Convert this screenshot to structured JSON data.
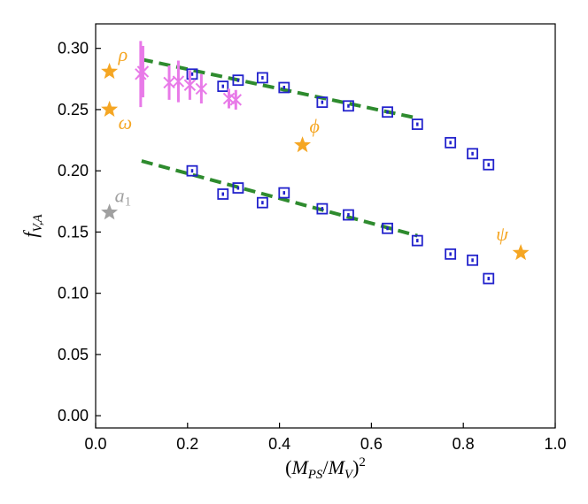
{
  "chart_data": {
    "type": "scatter",
    "xlabel": "(M_PS/M_V)^2",
    "ylabel": "f_V,A",
    "xlim": [
      0.0,
      1.0
    ],
    "ylim": [
      -0.01,
      0.32
    ],
    "xticks": [
      "0.0",
      "0.2",
      "0.4",
      "0.6",
      "0.8",
      "1.0"
    ],
    "yticks": [
      "0.00",
      "0.05",
      "0.10",
      "0.15",
      "0.20",
      "0.25",
      "0.30"
    ],
    "grid": false,
    "legend": "none",
    "colors": {
      "lattice": "#2222cc",
      "magenta": "#e87ae8",
      "fit": "#2e8b2e",
      "experiment": "#f5a623",
      "a1": "#a0a0a0"
    },
    "series": [
      {
        "marker": "open-square-blue",
        "points": [
          [
            0.21,
            0.279
          ],
          [
            0.277,
            0.269
          ],
          [
            0.31,
            0.274
          ],
          [
            0.363,
            0.276
          ],
          [
            0.41,
            0.268
          ],
          [
            0.493,
            0.256
          ],
          [
            0.55,
            0.253
          ],
          [
            0.635,
            0.248
          ],
          [
            0.7,
            0.238
          ],
          [
            0.772,
            0.223
          ],
          [
            0.82,
            0.214
          ],
          [
            0.855,
            0.205
          ]
        ]
      },
      {
        "marker": "open-square-blue",
        "points": [
          [
            0.21,
            0.2
          ],
          [
            0.277,
            0.181
          ],
          [
            0.31,
            0.186
          ],
          [
            0.363,
            0.174
          ],
          [
            0.41,
            0.182
          ],
          [
            0.493,
            0.169
          ],
          [
            0.55,
            0.164
          ],
          [
            0.635,
            0.153
          ],
          [
            0.7,
            0.143
          ],
          [
            0.772,
            0.132
          ],
          [
            0.82,
            0.127
          ],
          [
            0.855,
            0.112
          ]
        ]
      },
      {
        "marker": "x-magenta-errorbar",
        "points": [
          [
            0.098,
            0.279,
            0.027
          ],
          [
            0.103,
            0.281,
            0.021
          ],
          [
            0.16,
            0.272,
            0.014
          ],
          [
            0.18,
            0.273,
            0.017
          ],
          [
            0.205,
            0.27,
            0.012
          ],
          [
            0.23,
            0.267,
            0.012
          ],
          [
            0.29,
            0.259,
            0.008
          ],
          [
            0.305,
            0.258,
            0.008
          ]
        ]
      },
      {
        "marker": "dashed-line-green",
        "points": [
          [
            0.1,
            0.291
          ],
          [
            0.7,
            0.243
          ]
        ]
      },
      {
        "marker": "dashed-line-green",
        "points": [
          [
            0.1,
            0.208
          ],
          [
            0.7,
            0.147
          ]
        ]
      }
    ],
    "annotations": [
      {
        "text": "ρ",
        "x": 0.03,
        "y": 0.281,
        "color": "#f5a623"
      },
      {
        "text": "ω",
        "x": 0.03,
        "y": 0.25,
        "color": "#f5a623"
      },
      {
        "text": "ϕ",
        "x": 0.45,
        "y": 0.221,
        "color": "#f5a623"
      },
      {
        "text": "ψ",
        "x": 0.925,
        "y": 0.133,
        "color": "#f5a623"
      },
      {
        "text": "a",
        "sub": "1",
        "x": 0.03,
        "y": 0.166,
        "color": "#a0a0a0"
      }
    ]
  }
}
